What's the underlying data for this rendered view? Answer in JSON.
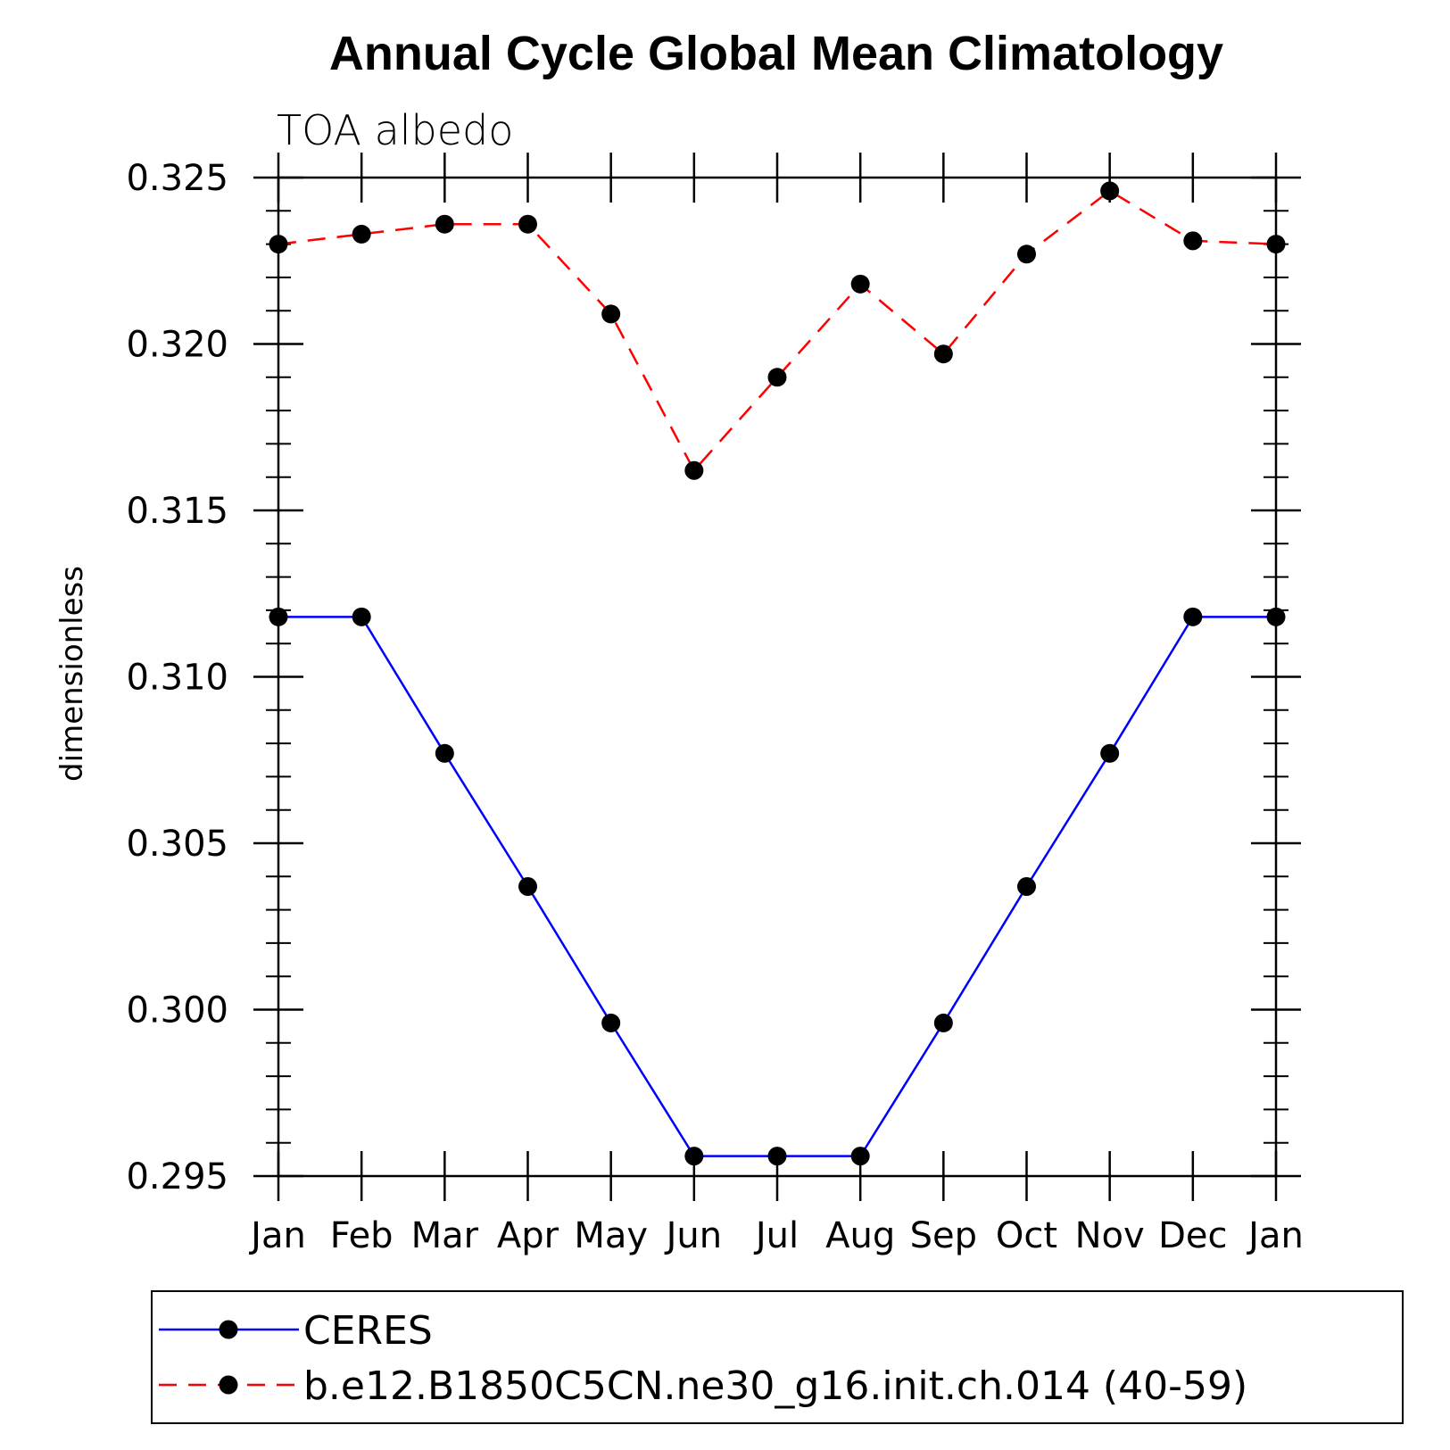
{
  "chart_data": {
    "type": "line",
    "title": "Annual Cycle Global Mean Climatology",
    "subtitle": "TOA albedo",
    "xlabel": "",
    "ylabel": "dimensionless",
    "categories": [
      "Jan",
      "Feb",
      "Mar",
      "Apr",
      "May",
      "Jun",
      "Jul",
      "Aug",
      "Sep",
      "Oct",
      "Nov",
      "Dec",
      "Jan"
    ],
    "ylim": [
      0.295,
      0.325
    ],
    "yticks": [
      "0.295",
      "0.300",
      "0.305",
      "0.310",
      "0.315",
      "0.320",
      "0.325"
    ],
    "series": [
      {
        "name": "CERES",
        "color": "#0000ff",
        "dash": "solid",
        "values": [
          0.3118,
          0.3118,
          0.3077,
          0.3037,
          0.2996,
          0.2956,
          0.2956,
          0.2956,
          0.2996,
          0.3037,
          0.3077,
          0.3118,
          0.3118
        ]
      },
      {
        "name": "b.e12.B1850C5CN.ne30_g16.init.ch.014 (40-59)",
        "color": "#ff0000",
        "dash": "dashed",
        "values": [
          0.323,
          0.3233,
          0.3236,
          0.3236,
          0.3209,
          0.3162,
          0.319,
          0.3218,
          0.3197,
          0.3227,
          0.3246,
          0.3231,
          0.323
        ]
      }
    ],
    "grid": false,
    "legend": "bottom"
  }
}
